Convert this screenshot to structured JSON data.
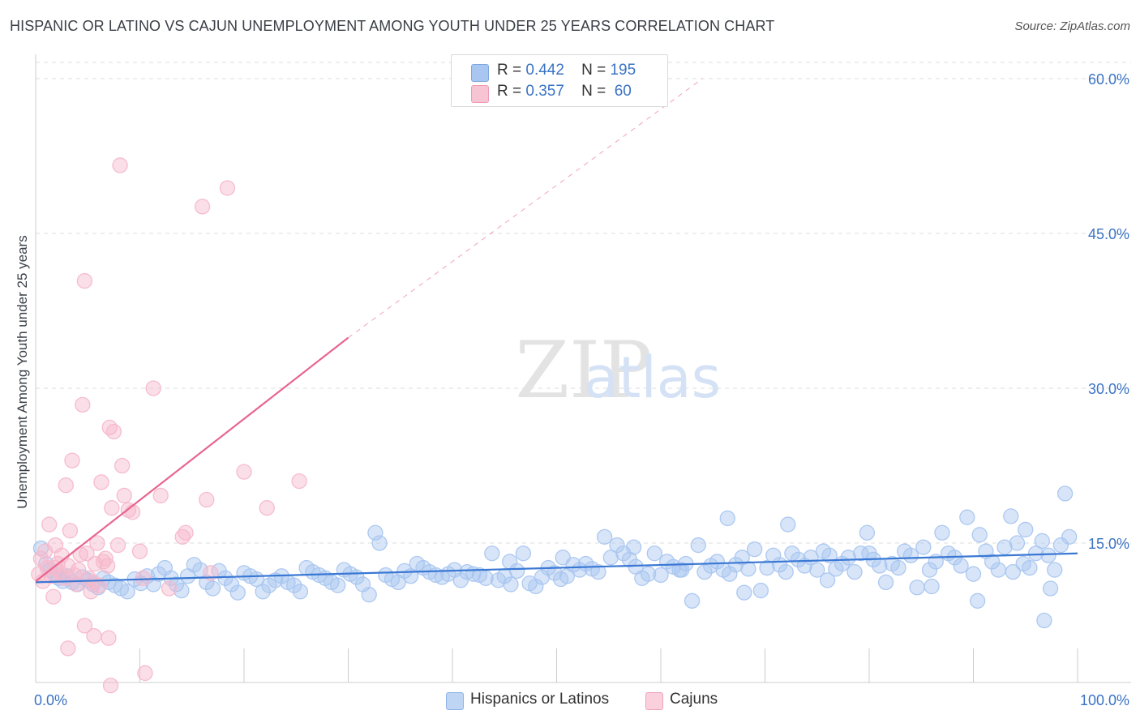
{
  "title": "HISPANIC OR LATINO VS CAJUN UNEMPLOYMENT AMONG YOUTH UNDER 25 YEARS CORRELATION CHART",
  "source": "Source: ZipAtlas.com",
  "watermark": {
    "zip": "ZIP",
    "atlas": "atlas"
  },
  "legend_top": [
    {
      "r_label": "R =",
      "r_value": "0.442",
      "n_label": "N =",
      "n_value": "195",
      "color": "#a9c6f0"
    },
    {
      "r_label": "R =",
      "r_value": "0.357",
      "n_label": "N =",
      "n_value": "60",
      "color": "#f6b8cb"
    }
  ],
  "legend_bottom": [
    {
      "label": "Hispanics or Latinos",
      "color": "#a9c6f0"
    },
    {
      "label": "Cajuns",
      "color": "#f6b8cb"
    }
  ],
  "chart_data": {
    "type": "scatter",
    "title": "HISPANIC OR LATINO VS CAJUN UNEMPLOYMENT AMONG YOUTH UNDER 25 YEARS CORRELATION CHART",
    "xlabel": "",
    "ylabel": "Unemployment Among Youth under 25 years",
    "xlim": [
      0,
      100
    ],
    "ylim": [
      0,
      63
    ],
    "x_tick_labels": [
      "0.0%",
      "100.0%"
    ],
    "y_ticks": [
      15,
      30,
      45,
      60
    ],
    "y_tick_labels": [
      "15.0%",
      "30.0%",
      "45.0%",
      "60.0%"
    ],
    "grid": true,
    "series": [
      {
        "name": "Hispanics or Latinos",
        "color": "#3a78d4",
        "fill": "#a9c6f0",
        "trend": {
          "x": [
            0,
            100
          ],
          "y": [
            11.2,
            14.0
          ]
        },
        "points": [
          [
            0.5,
            14.5
          ],
          [
            1.0,
            13.0
          ],
          [
            1.4,
            12.4
          ],
          [
            1.8,
            12.0
          ],
          [
            2.2,
            11.6
          ],
          [
            2.6,
            11.3
          ],
          [
            3.0,
            11.8
          ],
          [
            3.5,
            11.2
          ],
          [
            4.0,
            11.0
          ],
          [
            4.5,
            11.7
          ],
          [
            5.0,
            11.4
          ],
          [
            5.5,
            11.0
          ],
          [
            6.0,
            10.7
          ],
          [
            6.5,
            11.6
          ],
          [
            7.0,
            11.2
          ],
          [
            7.6,
            10.9
          ],
          [
            8.2,
            10.6
          ],
          [
            8.8,
            10.3
          ],
          [
            9.5,
            11.5
          ],
          [
            10.1,
            11.1
          ],
          [
            10.7,
            11.8
          ],
          [
            11.3,
            11.0
          ],
          [
            11.8,
            12.0
          ],
          [
            12.4,
            12.6
          ],
          [
            13.0,
            11.6
          ],
          [
            13.5,
            11.0
          ],
          [
            14.0,
            10.4
          ],
          [
            14.6,
            11.8
          ],
          [
            15.2,
            12.9
          ],
          [
            15.8,
            12.4
          ],
          [
            16.4,
            11.2
          ],
          [
            17.0,
            10.6
          ],
          [
            17.6,
            12.3
          ],
          [
            18.2,
            11.6
          ],
          [
            18.8,
            11.0
          ],
          [
            19.4,
            10.2
          ],
          [
            20.0,
            12.1
          ],
          [
            20.6,
            11.8
          ],
          [
            21.2,
            11.5
          ],
          [
            21.8,
            10.3
          ],
          [
            22.4,
            10.9
          ],
          [
            23.0,
            11.4
          ],
          [
            23.6,
            11.8
          ],
          [
            24.2,
            11.2
          ],
          [
            24.8,
            10.9
          ],
          [
            25.4,
            10.3
          ],
          [
            26.0,
            12.6
          ],
          [
            26.6,
            12.2
          ],
          [
            27.2,
            11.9
          ],
          [
            27.8,
            11.6
          ],
          [
            28.4,
            11.2
          ],
          [
            29.0,
            10.9
          ],
          [
            29.6,
            12.4
          ],
          [
            30.2,
            12.0
          ],
          [
            30.8,
            11.7
          ],
          [
            31.4,
            11.0
          ],
          [
            32.0,
            10.0
          ],
          [
            32.6,
            16.0
          ],
          [
            33.0,
            15.0
          ],
          [
            33.6,
            11.9
          ],
          [
            34.2,
            11.5
          ],
          [
            34.8,
            11.2
          ],
          [
            35.4,
            12.3
          ],
          [
            36.0,
            11.8
          ],
          [
            36.6,
            13.0
          ],
          [
            37.2,
            12.6
          ],
          [
            37.8,
            12.2
          ],
          [
            38.4,
            11.9
          ],
          [
            39.0,
            11.7
          ],
          [
            39.6,
            12.0
          ],
          [
            40.2,
            12.4
          ],
          [
            40.8,
            11.4
          ],
          [
            41.4,
            12.2
          ],
          [
            42.0,
            12.0
          ],
          [
            42.6,
            11.9
          ],
          [
            43.2,
            11.6
          ],
          [
            43.8,
            14.0
          ],
          [
            44.4,
            11.4
          ],
          [
            45.0,
            11.8
          ],
          [
            45.6,
            11.0
          ],
          [
            46.2,
            12.3
          ],
          [
            46.8,
            14.0
          ],
          [
            47.4,
            11.1
          ],
          [
            48.0,
            10.8
          ],
          [
            48.6,
            11.7
          ],
          [
            49.2,
            12.6
          ],
          [
            49.8,
            12.1
          ],
          [
            50.4,
            11.5
          ],
          [
            51.0,
            11.8
          ],
          [
            51.6,
            12.9
          ],
          [
            52.2,
            12.4
          ],
          [
            52.8,
            13.0
          ],
          [
            53.4,
            12.5
          ],
          [
            54.0,
            12.2
          ],
          [
            54.6,
            15.6
          ],
          [
            55.2,
            13.6
          ],
          [
            55.8,
            14.8
          ],
          [
            56.4,
            14.0
          ],
          [
            57.0,
            13.4
          ],
          [
            57.6,
            12.7
          ],
          [
            58.2,
            11.6
          ],
          [
            58.8,
            12.0
          ],
          [
            59.4,
            14.0
          ],
          [
            60.0,
            11.9
          ],
          [
            60.6,
            13.2
          ],
          [
            61.2,
            12.7
          ],
          [
            61.8,
            12.4
          ],
          [
            62.4,
            13.0
          ],
          [
            63.0,
            9.4
          ],
          [
            63.6,
            14.8
          ],
          [
            64.2,
            12.2
          ],
          [
            64.8,
            12.8
          ],
          [
            65.4,
            13.2
          ],
          [
            66.0,
            12.4
          ],
          [
            66.6,
            12.0
          ],
          [
            67.2,
            12.9
          ],
          [
            67.8,
            13.6
          ],
          [
            68.4,
            12.5
          ],
          [
            69.0,
            14.4
          ],
          [
            69.6,
            10.4
          ],
          [
            70.2,
            12.6
          ],
          [
            70.8,
            13.8
          ],
          [
            71.4,
            12.9
          ],
          [
            72.0,
            12.2
          ],
          [
            72.6,
            14.0
          ],
          [
            73.2,
            13.4
          ],
          [
            73.8,
            12.8
          ],
          [
            74.4,
            13.6
          ],
          [
            75.0,
            12.4
          ],
          [
            75.6,
            14.2
          ],
          [
            76.2,
            13.8
          ],
          [
            76.8,
            12.5
          ],
          [
            77.4,
            13.0
          ],
          [
            78.0,
            13.6
          ],
          [
            78.6,
            12.2
          ],
          [
            79.2,
            14.0
          ],
          [
            79.8,
            16.0
          ],
          [
            80.4,
            13.4
          ],
          [
            81.0,
            12.8
          ],
          [
            81.6,
            11.2
          ],
          [
            82.2,
            13.0
          ],
          [
            82.8,
            12.6
          ],
          [
            83.4,
            14.2
          ],
          [
            84.0,
            13.8
          ],
          [
            84.6,
            10.7
          ],
          [
            85.2,
            14.6
          ],
          [
            85.8,
            12.4
          ],
          [
            86.4,
            13.2
          ],
          [
            87.0,
            16.0
          ],
          [
            87.6,
            14.0
          ],
          [
            88.2,
            13.6
          ],
          [
            88.8,
            12.8
          ],
          [
            89.4,
            17.5
          ],
          [
            90.0,
            12.0
          ],
          [
            90.6,
            15.8
          ],
          [
            91.2,
            14.2
          ],
          [
            91.8,
            13.2
          ],
          [
            92.4,
            12.4
          ],
          [
            93.0,
            14.6
          ],
          [
            93.6,
            17.6
          ],
          [
            94.2,
            15.0
          ],
          [
            94.8,
            13.0
          ],
          [
            95.4,
            12.6
          ],
          [
            96.0,
            14.0
          ],
          [
            96.6,
            15.2
          ],
          [
            97.2,
            13.8
          ],
          [
            97.8,
            12.4
          ],
          [
            98.4,
            14.8
          ],
          [
            98.8,
            19.8
          ],
          [
            99.2,
            15.6
          ],
          [
            62.0,
            12.4
          ],
          [
            68.0,
            10.2
          ],
          [
            76.0,
            11.4
          ],
          [
            80.0,
            14.0
          ],
          [
            86.0,
            10.8
          ],
          [
            90.4,
            9.4
          ],
          [
            93.8,
            12.2
          ],
          [
            95.0,
            16.3
          ],
          [
            96.8,
            7.5
          ],
          [
            97.4,
            10.6
          ],
          [
            45.5,
            13.2
          ],
          [
            50.6,
            13.6
          ],
          [
            57.4,
            14.6
          ],
          [
            66.4,
            17.4
          ],
          [
            72.2,
            16.8
          ]
        ]
      },
      {
        "name": "Cajuns",
        "color": "#e8648e",
        "fill": "#f6b8cb",
        "trend": {
          "x": [
            0,
            30
          ],
          "y": [
            11.3,
            34.9
          ]
        },
        "trend_extension": {
          "x": [
            30,
            64
          ],
          "y": [
            34.9,
            60.0
          ]
        },
        "points": [
          [
            0.3,
            12.0
          ],
          [
            0.5,
            13.5
          ],
          [
            0.7,
            11.3
          ],
          [
            0.9,
            14.2
          ],
          [
            1.1,
            12.6
          ],
          [
            1.3,
            16.8
          ],
          [
            1.5,
            11.8
          ],
          [
            1.7,
            9.8
          ],
          [
            1.9,
            14.8
          ],
          [
            2.1,
            13.0
          ],
          [
            2.3,
            12.2
          ],
          [
            2.5,
            13.8
          ],
          [
            2.7,
            11.6
          ],
          [
            2.9,
            20.6
          ],
          [
            3.1,
            12.8
          ],
          [
            3.3,
            16.2
          ],
          [
            3.5,
            23.0
          ],
          [
            3.7,
            11.9
          ],
          [
            3.9,
            11.0
          ],
          [
            4.1,
            12.4
          ],
          [
            4.3,
            13.9
          ],
          [
            4.5,
            28.4
          ],
          [
            4.7,
            40.4
          ],
          [
            4.9,
            14.0
          ],
          [
            5.1,
            11.6
          ],
          [
            5.3,
            10.3
          ],
          [
            5.5,
            11.2
          ],
          [
            5.7,
            13.0
          ],
          [
            5.9,
            15.0
          ],
          [
            6.1,
            10.9
          ],
          [
            6.3,
            20.9
          ],
          [
            6.5,
            13.2
          ],
          [
            6.7,
            13.5
          ],
          [
            6.9,
            12.8
          ],
          [
            7.1,
            26.2
          ],
          [
            7.3,
            18.4
          ],
          [
            7.5,
            25.8
          ],
          [
            7.9,
            14.8
          ],
          [
            8.1,
            51.6
          ],
          [
            8.3,
            22.5
          ],
          [
            8.5,
            19.6
          ],
          [
            8.9,
            18.2
          ],
          [
            9.3,
            18.0
          ],
          [
            10.0,
            14.2
          ],
          [
            10.3,
            11.6
          ],
          [
            11.3,
            30.0
          ],
          [
            12.0,
            19.6
          ],
          [
            12.8,
            10.6
          ],
          [
            14.1,
            15.6
          ],
          [
            14.4,
            16.0
          ],
          [
            16.0,
            47.6
          ],
          [
            16.4,
            19.2
          ],
          [
            18.4,
            49.4
          ],
          [
            16.8,
            12.1
          ],
          [
            4.7,
            7.0
          ],
          [
            3.1,
            4.8
          ],
          [
            5.6,
            6.0
          ],
          [
            7.0,
            5.8
          ],
          [
            7.2,
            1.2
          ],
          [
            10.5,
            2.4
          ],
          [
            1.8,
            12.6
          ],
          [
            20.0,
            21.9
          ],
          [
            22.2,
            18.4
          ],
          [
            25.3,
            21.0
          ]
        ]
      }
    ]
  }
}
